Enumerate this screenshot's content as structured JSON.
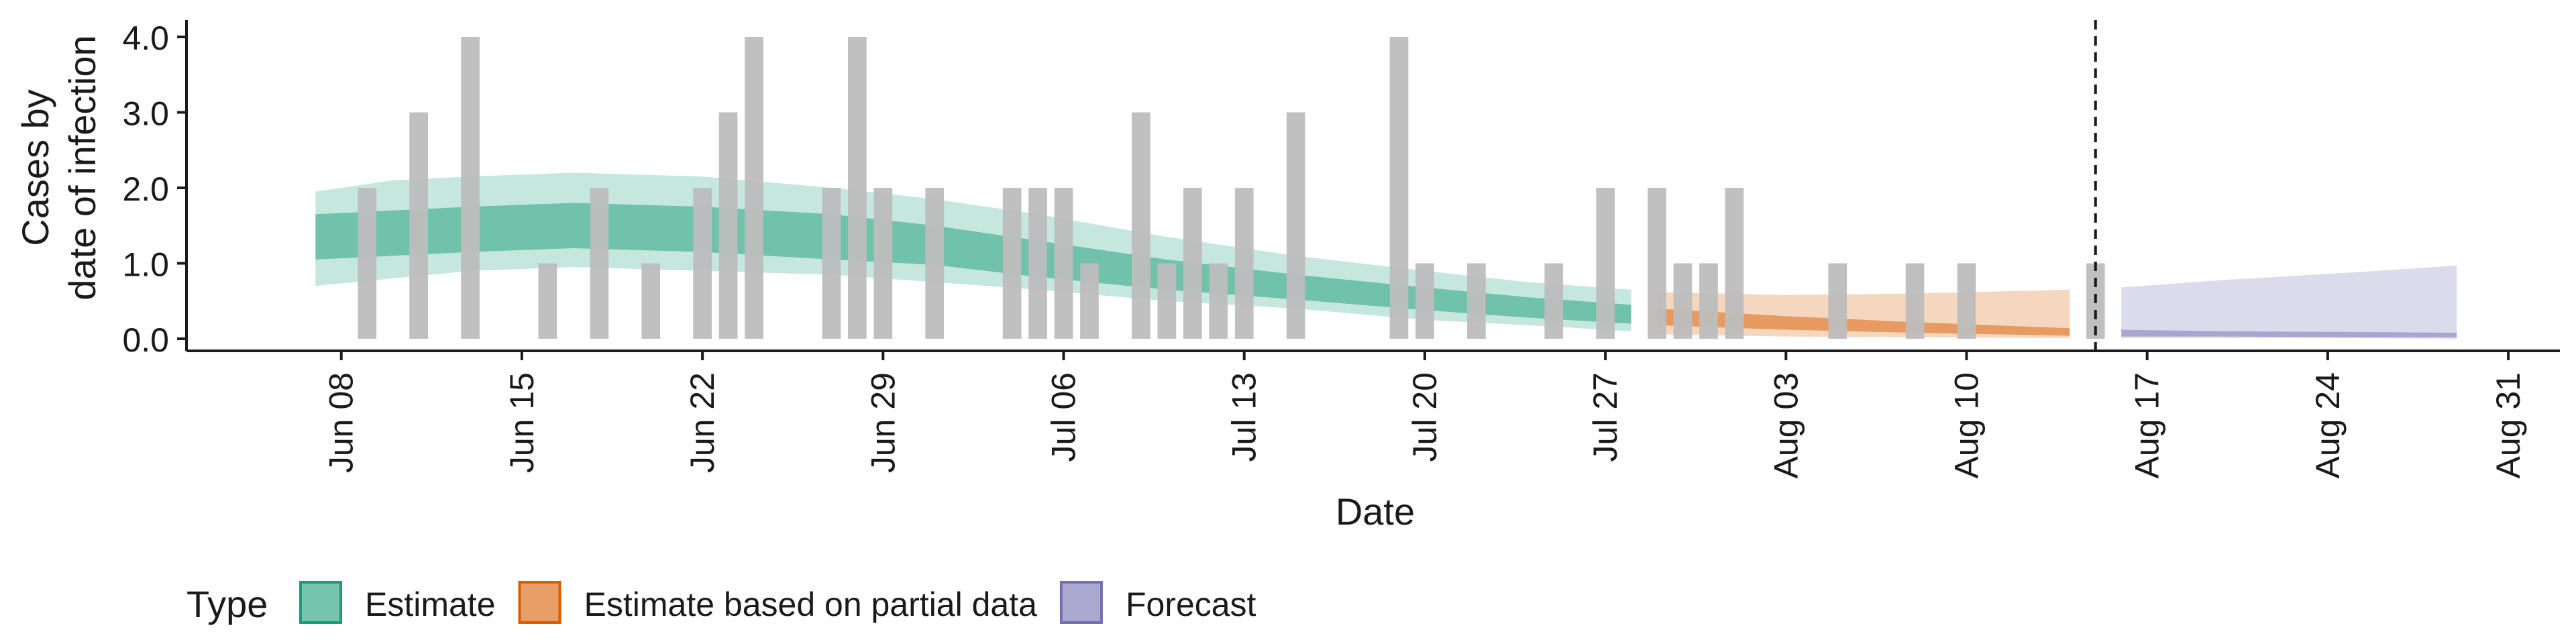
{
  "chart_data": {
    "type": "bar",
    "xlabel": "Date",
    "ylabel_lines": [
      "Cases by",
      "date of infection"
    ],
    "ylim": [
      0,
      4.2
    ],
    "yticks": [
      0,
      1,
      2,
      3,
      4
    ],
    "ytick_labels": [
      "0.0",
      "1.0",
      "2.0",
      "3.0",
      "4.0"
    ],
    "xlim": [
      "2025-06-02",
      "2025-09-02"
    ],
    "x_ticks": [
      {
        "date": "2025-06-08",
        "label": "Jun 08"
      },
      {
        "date": "2025-06-15",
        "label": "Jun 15"
      },
      {
        "date": "2025-06-22",
        "label": "Jun 22"
      },
      {
        "date": "2025-06-29",
        "label": "Jun 29"
      },
      {
        "date": "2025-07-06",
        "label": "Jul 06"
      },
      {
        "date": "2025-07-13",
        "label": "Jul 13"
      },
      {
        "date": "2025-07-20",
        "label": "Jul 20"
      },
      {
        "date": "2025-07-27",
        "label": "Jul 27"
      },
      {
        "date": "2025-08-03",
        "label": "Aug 03"
      },
      {
        "date": "2025-08-10",
        "label": "Aug 10"
      },
      {
        "date": "2025-08-17",
        "label": "Aug 17"
      },
      {
        "date": "2025-08-24",
        "label": "Aug 24"
      },
      {
        "date": "2025-08-31",
        "label": "Aug 31"
      }
    ],
    "reference_line_date": "2025-08-15",
    "observed_cases": [
      {
        "date": "2025-06-09",
        "value": 2
      },
      {
        "date": "2025-06-11",
        "value": 3
      },
      {
        "date": "2025-06-13",
        "value": 4
      },
      {
        "date": "2025-06-16",
        "value": 1
      },
      {
        "date": "2025-06-18",
        "value": 2
      },
      {
        "date": "2025-06-20",
        "value": 1
      },
      {
        "date": "2025-06-22",
        "value": 2
      },
      {
        "date": "2025-06-23",
        "value": 3
      },
      {
        "date": "2025-06-24",
        "value": 4
      },
      {
        "date": "2025-06-27",
        "value": 2
      },
      {
        "date": "2025-06-28",
        "value": 4
      },
      {
        "date": "2025-06-29",
        "value": 2
      },
      {
        "date": "2025-07-01",
        "value": 2
      },
      {
        "date": "2025-07-04",
        "value": 2
      },
      {
        "date": "2025-07-05",
        "value": 2
      },
      {
        "date": "2025-07-06",
        "value": 2
      },
      {
        "date": "2025-07-07",
        "value": 1
      },
      {
        "date": "2025-07-09",
        "value": 3
      },
      {
        "date": "2025-07-10",
        "value": 1
      },
      {
        "date": "2025-07-11",
        "value": 2
      },
      {
        "date": "2025-07-12",
        "value": 1
      },
      {
        "date": "2025-07-13",
        "value": 2
      },
      {
        "date": "2025-07-15",
        "value": 3
      },
      {
        "date": "2025-07-19",
        "value": 4
      },
      {
        "date": "2025-07-20",
        "value": 1
      },
      {
        "date": "2025-07-22",
        "value": 1
      },
      {
        "date": "2025-07-25",
        "value": 1
      },
      {
        "date": "2025-07-27",
        "value": 2
      },
      {
        "date": "2025-07-29",
        "value": 2
      },
      {
        "date": "2025-07-30",
        "value": 1
      },
      {
        "date": "2025-07-31",
        "value": 1
      },
      {
        "date": "2025-08-01",
        "value": 2
      },
      {
        "date": "2025-08-05",
        "value": 1
      },
      {
        "date": "2025-08-08",
        "value": 1
      },
      {
        "date": "2025-08-10",
        "value": 1
      },
      {
        "date": "2025-08-15",
        "value": 1
      }
    ],
    "series": [
      {
        "name": "Estimate",
        "color": "#1b9e77",
        "points": [
          {
            "date": "2025-06-07",
            "median": 1.3,
            "lower_50": 1.05,
            "upper_50": 1.65,
            "lower_90": 0.7,
            "upper_90": 1.95
          },
          {
            "date": "2025-06-10",
            "median": 1.4,
            "lower_50": 1.1,
            "upper_50": 1.7,
            "lower_90": 0.8,
            "upper_90": 2.1
          },
          {
            "date": "2025-06-13",
            "median": 1.45,
            "lower_50": 1.15,
            "upper_50": 1.75,
            "lower_90": 0.9,
            "upper_90": 2.15
          },
          {
            "date": "2025-06-17",
            "median": 1.5,
            "lower_50": 1.2,
            "upper_50": 1.8,
            "lower_90": 0.95,
            "upper_90": 2.2
          },
          {
            "date": "2025-06-22",
            "median": 1.45,
            "lower_50": 1.15,
            "upper_50": 1.75,
            "lower_90": 0.9,
            "upper_90": 2.15
          },
          {
            "date": "2025-06-27",
            "median": 1.35,
            "lower_50": 1.05,
            "upper_50": 1.65,
            "lower_90": 0.85,
            "upper_90": 2.0
          },
          {
            "date": "2025-07-01",
            "median": 1.25,
            "lower_50": 0.98,
            "upper_50": 1.5,
            "lower_90": 0.75,
            "upper_90": 1.85
          },
          {
            "date": "2025-07-05",
            "median": 1.05,
            "lower_50": 0.82,
            "upper_50": 1.3,
            "lower_90": 0.65,
            "upper_90": 1.65
          },
          {
            "date": "2025-07-10",
            "median": 0.85,
            "lower_50": 0.65,
            "upper_50": 1.05,
            "lower_90": 0.5,
            "upper_90": 1.35
          },
          {
            "date": "2025-07-15",
            "median": 0.68,
            "lower_50": 0.52,
            "upper_50": 0.85,
            "lower_90": 0.4,
            "upper_90": 1.1
          },
          {
            "date": "2025-07-20",
            "median": 0.5,
            "lower_50": 0.38,
            "upper_50": 0.68,
            "lower_90": 0.25,
            "upper_90": 0.9
          },
          {
            "date": "2025-07-24",
            "median": 0.4,
            "lower_50": 0.28,
            "upper_50": 0.55,
            "lower_90": 0.18,
            "upper_90": 0.75
          },
          {
            "date": "2025-07-28",
            "median": 0.3,
            "lower_50": 0.2,
            "upper_50": 0.45,
            "lower_90": 0.1,
            "upper_90": 0.65
          }
        ]
      },
      {
        "name": "Estimate based on partial data",
        "color": "#d95f02",
        "points": [
          {
            "date": "2025-07-29",
            "median": 0.28,
            "lower_50": 0.18,
            "upper_50": 0.4,
            "lower_90": 0.06,
            "upper_90": 0.62
          },
          {
            "date": "2025-08-03",
            "median": 0.2,
            "lower_50": 0.12,
            "upper_50": 0.3,
            "lower_90": 0.03,
            "upper_90": 0.58
          },
          {
            "date": "2025-08-08",
            "median": 0.13,
            "lower_50": 0.08,
            "upper_50": 0.22,
            "lower_90": 0.02,
            "upper_90": 0.6
          },
          {
            "date": "2025-08-14",
            "median": 0.08,
            "lower_50": 0.04,
            "upper_50": 0.14,
            "lower_90": 0.01,
            "upper_90": 0.65
          }
        ]
      },
      {
        "name": "Forecast",
        "color": "#7570b3",
        "points": [
          {
            "date": "2025-08-16",
            "median": 0.07,
            "lower_50": 0.03,
            "upper_50": 0.12,
            "lower_90": 0.01,
            "upper_90": 0.68
          },
          {
            "date": "2025-08-20",
            "median": 0.06,
            "lower_50": 0.03,
            "upper_50": 0.1,
            "lower_90": 0.01,
            "upper_90": 0.78
          },
          {
            "date": "2025-08-25",
            "median": 0.05,
            "lower_50": 0.02,
            "upper_50": 0.09,
            "lower_90": 0.01,
            "upper_90": 0.88
          },
          {
            "date": "2025-08-29",
            "median": 0.04,
            "lower_50": 0.02,
            "upper_50": 0.08,
            "lower_90": 0.0,
            "upper_90": 0.97
          }
        ]
      }
    ],
    "legend": {
      "title": "Type",
      "position": "bottom",
      "entries": [
        "Estimate",
        "Estimate based on partial data",
        "Forecast"
      ]
    },
    "grid": false,
    "bar_color": "#bdbdbd"
  }
}
